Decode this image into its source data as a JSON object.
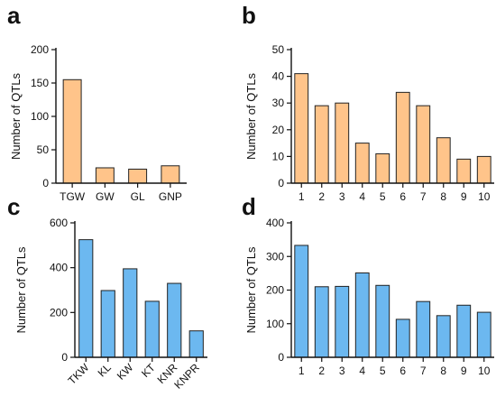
{
  "chart_data": [
    {
      "panel": "a",
      "type": "bar",
      "categories": [
        "TGW",
        "GW",
        "GL",
        "GNP"
      ],
      "values": [
        155,
        23,
        21,
        26
      ],
      "ylabel": "Number of QTLs",
      "ylim": [
        0,
        200
      ],
      "yticks": [
        0,
        50,
        100,
        150,
        200
      ],
      "bar_color": "#FFC48A",
      "rotate_x_labels": false
    },
    {
      "panel": "b",
      "type": "bar",
      "categories": [
        "1",
        "2",
        "3",
        "4",
        "5",
        "6",
        "7",
        "8",
        "9",
        "10"
      ],
      "values": [
        41,
        29,
        30,
        15,
        11,
        34,
        29,
        17,
        9,
        10
      ],
      "ylabel": "Number of QTLs",
      "ylim": [
        0,
        50
      ],
      "yticks": [
        0,
        10,
        20,
        30,
        40,
        50
      ],
      "bar_color": "#FFC48A",
      "rotate_x_labels": false
    },
    {
      "panel": "c",
      "type": "bar",
      "categories": [
        "TKW",
        "KL",
        "KW",
        "KT",
        "KNR",
        "KNPR"
      ],
      "values": [
        525,
        298,
        395,
        250,
        330,
        118
      ],
      "ylabel": "Number of QTLs",
      "ylim": [
        0,
        600
      ],
      "yticks": [
        0,
        200,
        400,
        600
      ],
      "bar_color": "#6CB8F0",
      "rotate_x_labels": true
    },
    {
      "panel": "d",
      "type": "bar",
      "categories": [
        "1",
        "2",
        "3",
        "4",
        "5",
        "6",
        "7",
        "8",
        "9",
        "10"
      ],
      "values": [
        333,
        210,
        211,
        251,
        214,
        113,
        166,
        124,
        155,
        134
      ],
      "ylabel": "Number of QTLs",
      "ylim": [
        0,
        400
      ],
      "yticks": [
        0,
        100,
        200,
        300,
        400
      ],
      "bar_color": "#6CB8F0",
      "rotate_x_labels": false
    }
  ]
}
